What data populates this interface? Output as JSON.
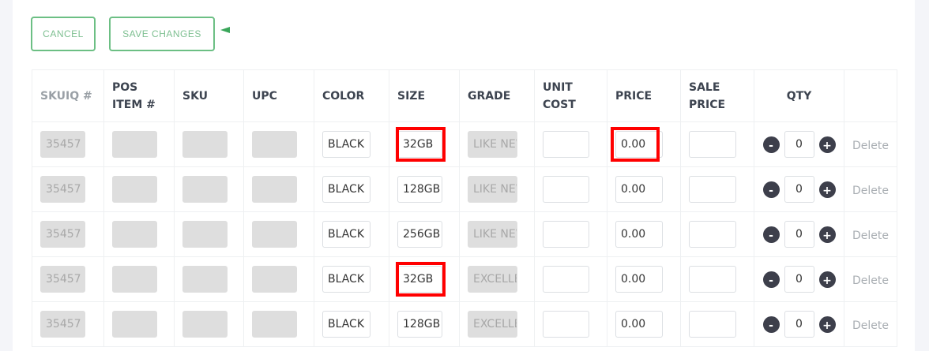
{
  "toolbar": {
    "cancel_label": "CANCEL",
    "save_label": "SAVE CHANGES"
  },
  "columns": [
    "SKUIQ #",
    "POS ITEM #",
    "SKU",
    "UPC",
    "COLOR",
    "SIZE",
    "GRADE",
    "UNIT COST",
    "PRICE",
    "SALE PRICE",
    "QTY",
    ""
  ],
  "rows": [
    {
      "skuiq": "35457",
      "pos": "",
      "sku": "",
      "upc": "",
      "color": "BLACK",
      "size": "32GB",
      "grade": "LIKE NEW",
      "unit_cost": "",
      "price": "0.00",
      "sale_price": "",
      "qty": "0",
      "delete": "Delete"
    },
    {
      "skuiq": "35457",
      "pos": "",
      "sku": "",
      "upc": "",
      "color": "BLACK",
      "size": "128GB",
      "grade": "LIKE NEW",
      "unit_cost": "",
      "price": "0.00",
      "sale_price": "",
      "qty": "0",
      "delete": "Delete"
    },
    {
      "skuiq": "35457",
      "pos": "",
      "sku": "",
      "upc": "",
      "color": "BLACK",
      "size": "256GB",
      "grade": "LIKE NEW",
      "unit_cost": "",
      "price": "0.00",
      "sale_price": "",
      "qty": "0",
      "delete": "Delete"
    },
    {
      "skuiq": "35457",
      "pos": "",
      "sku": "",
      "upc": "",
      "color": "BLACK",
      "size": "32GB",
      "grade": "EXCELLENT",
      "unit_cost": "",
      "price": "0.00",
      "sale_price": "",
      "qty": "0",
      "delete": "Delete"
    },
    {
      "skuiq": "35457",
      "pos": "",
      "sku": "",
      "upc": "",
      "color": "BLACK",
      "size": "128GB",
      "grade": "EXCELLENT",
      "unit_cost": "",
      "price": "0.00",
      "sale_price": "",
      "qty": "0",
      "delete": "Delete"
    }
  ],
  "qty_controls": {
    "minus": "-",
    "plus": "+"
  },
  "colors": {
    "accent": "#6cbf84",
    "highlight": "#ff0000",
    "stepper": "#3d3f4b"
  }
}
